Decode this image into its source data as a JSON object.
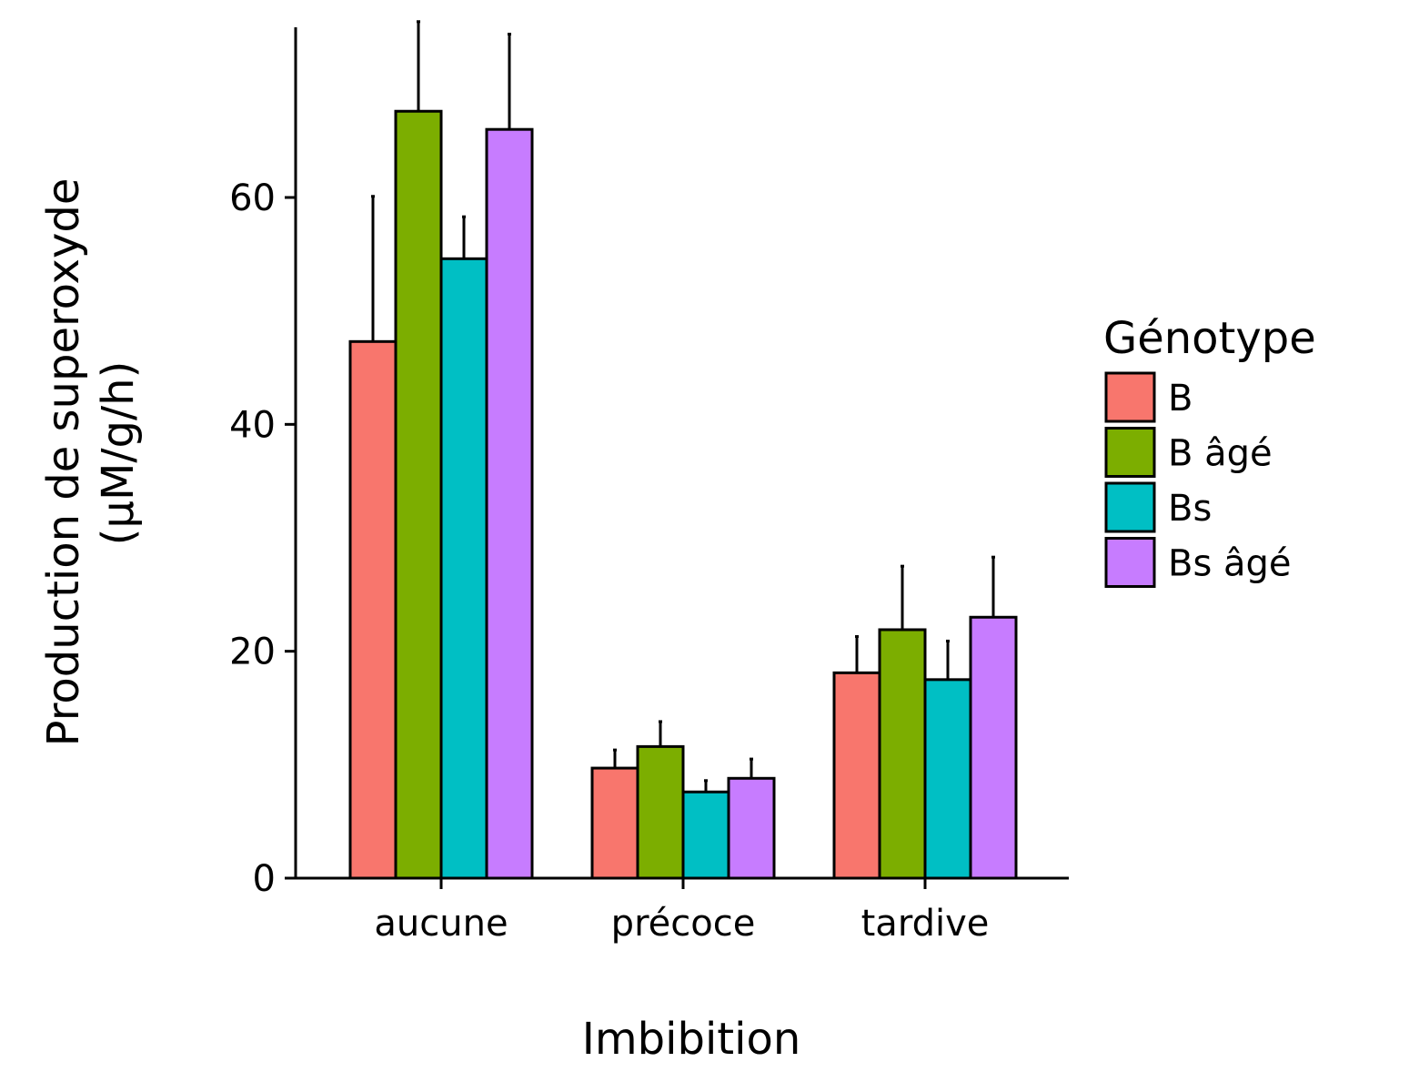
{
  "chart_data": {
    "type": "bar",
    "xlabel": "Imbibition",
    "ylabel_lines": [
      "Production de superoxyde",
      "(µM/g/h)"
    ],
    "ylim": [
      0,
      75
    ],
    "yticks": [
      0,
      20,
      40,
      60
    ],
    "categories": [
      "aucune",
      "précoce",
      "tardive"
    ],
    "legend": {
      "title": "Génotype",
      "position": "right"
    },
    "series": [
      {
        "name": "B",
        "color": "#F8766D",
        "values": [
          47.3,
          9.7,
          18.1
        ],
        "errors": [
          12.8,
          1.6,
          3.2
        ]
      },
      {
        "name": "B âgé",
        "color": "#7CAE00",
        "values": [
          67.6,
          11.6,
          21.9
        ],
        "errors": [
          7.9,
          2.2,
          5.6
        ]
      },
      {
        "name": "Bs",
        "color": "#00BFC4",
        "values": [
          54.6,
          7.6,
          17.5
        ],
        "errors": [
          3.7,
          1.0,
          3.4
        ]
      },
      {
        "name": "Bs âgé",
        "color": "#C77CFF",
        "values": [
          66.0,
          8.8,
          23.0
        ],
        "errors": [
          8.4,
          1.7,
          5.3
        ]
      }
    ],
    "grid": false
  }
}
